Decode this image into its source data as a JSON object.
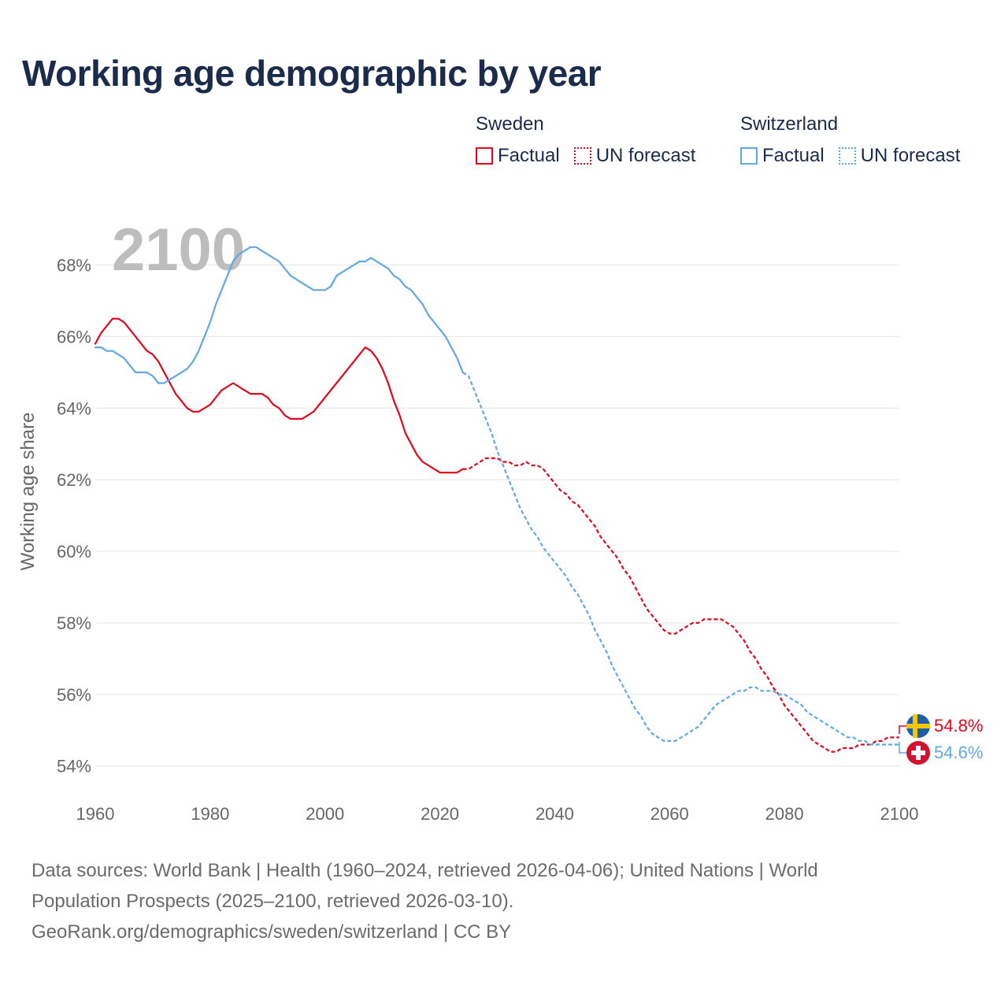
{
  "title": "Working age demographic by year",
  "legend": {
    "sweden": {
      "name": "Sweden",
      "factual": "Factual",
      "forecast": "UN forecast",
      "color": "#e3061c"
    },
    "switzerland": {
      "name": "Switzerland",
      "factual": "Factual",
      "forecast": "UN forecast",
      "color": "#62a8e5"
    }
  },
  "year_overlay": "2100",
  "end_labels": {
    "sweden": "54.8%",
    "switzerland": "54.6%"
  },
  "sources": {
    "line1": "Data sources: World Bank | Health (1960–2024, retrieved 2026-04-06); United Nations | World",
    "line2": "Population Prospects (2025–2100, retrieved 2026-03-10).",
    "line3": "GeoRank.org/demographics/sweden/switzerland | CC BY"
  },
  "chart_data": {
    "type": "line",
    "title": "Working age demographic by year",
    "xlabel": "",
    "ylabel": "Working age share",
    "xlim": [
      1960,
      2100
    ],
    "ylim": [
      53.4,
      69.2
    ],
    "x_ticks": [
      1960,
      1980,
      2000,
      2020,
      2040,
      2060,
      2080,
      2100
    ],
    "y_ticks": [
      54,
      56,
      58,
      60,
      62,
      64,
      66,
      68
    ],
    "x_tick_labels": [
      "1960",
      "1980",
      "2000",
      "2020",
      "2040",
      "2060",
      "2080",
      "2100"
    ],
    "y_tick_labels": [
      "54%",
      "56%",
      "58%",
      "60%",
      "62%",
      "64%",
      "66%",
      "68%"
    ],
    "grid": true,
    "factual_end_year": 2024,
    "series": [
      {
        "name": "Sweden",
        "color": "#e3061c",
        "points": [
          [
            1960,
            65.8
          ],
          [
            1961,
            66.1
          ],
          [
            1962,
            66.3
          ],
          [
            1963,
            66.5
          ],
          [
            1964,
            66.5
          ],
          [
            1965,
            66.4
          ],
          [
            1966,
            66.2
          ],
          [
            1967,
            66.0
          ],
          [
            1968,
            65.8
          ],
          [
            1969,
            65.6
          ],
          [
            1970,
            65.5
          ],
          [
            1971,
            65.3
          ],
          [
            1972,
            65.0
          ],
          [
            1973,
            64.7
          ],
          [
            1974,
            64.4
          ],
          [
            1975,
            64.2
          ],
          [
            1976,
            64.0
          ],
          [
            1977,
            63.9
          ],
          [
            1978,
            63.9
          ],
          [
            1979,
            64.0
          ],
          [
            1980,
            64.1
          ],
          [
            1981,
            64.3
          ],
          [
            1982,
            64.5
          ],
          [
            1983,
            64.6
          ],
          [
            1984,
            64.7
          ],
          [
            1985,
            64.6
          ],
          [
            1986,
            64.5
          ],
          [
            1987,
            64.4
          ],
          [
            1988,
            64.4
          ],
          [
            1989,
            64.4
          ],
          [
            1990,
            64.3
          ],
          [
            1991,
            64.1
          ],
          [
            1992,
            64.0
          ],
          [
            1993,
            63.8
          ],
          [
            1994,
            63.7
          ],
          [
            1995,
            63.7
          ],
          [
            1996,
            63.7
          ],
          [
            1997,
            63.8
          ],
          [
            1998,
            63.9
          ],
          [
            1999,
            64.1
          ],
          [
            2000,
            64.3
          ],
          [
            2001,
            64.5
          ],
          [
            2002,
            64.7
          ],
          [
            2003,
            64.9
          ],
          [
            2004,
            65.1
          ],
          [
            2005,
            65.3
          ],
          [
            2006,
            65.5
          ],
          [
            2007,
            65.7
          ],
          [
            2008,
            65.6
          ],
          [
            2009,
            65.4
          ],
          [
            2010,
            65.1
          ],
          [
            2011,
            64.7
          ],
          [
            2012,
            64.2
          ],
          [
            2013,
            63.8
          ],
          [
            2014,
            63.3
          ],
          [
            2015,
            63.0
          ],
          [
            2016,
            62.7
          ],
          [
            2017,
            62.5
          ],
          [
            2018,
            62.4
          ],
          [
            2019,
            62.3
          ],
          [
            2020,
            62.2
          ],
          [
            2021,
            62.2
          ],
          [
            2022,
            62.2
          ],
          [
            2023,
            62.2
          ],
          [
            2024,
            62.3
          ],
          [
            2025,
            62.3
          ],
          [
            2026,
            62.4
          ],
          [
            2027,
            62.5
          ],
          [
            2028,
            62.6
          ],
          [
            2029,
            62.6
          ],
          [
            2030,
            62.6
          ],
          [
            2031,
            62.5
          ],
          [
            2032,
            62.5
          ],
          [
            2033,
            62.4
          ],
          [
            2034,
            62.4
          ],
          [
            2035,
            62.5
          ],
          [
            2036,
            62.4
          ],
          [
            2037,
            62.4
          ],
          [
            2038,
            62.3
          ],
          [
            2039,
            62.1
          ],
          [
            2040,
            61.9
          ],
          [
            2041,
            61.7
          ],
          [
            2042,
            61.6
          ],
          [
            2043,
            61.4
          ],
          [
            2044,
            61.3
          ],
          [
            2045,
            61.1
          ],
          [
            2046,
            60.9
          ],
          [
            2047,
            60.7
          ],
          [
            2048,
            60.4
          ],
          [
            2049,
            60.2
          ],
          [
            2050,
            60.0
          ],
          [
            2051,
            59.8
          ],
          [
            2052,
            59.5
          ],
          [
            2053,
            59.3
          ],
          [
            2054,
            59.0
          ],
          [
            2055,
            58.7
          ],
          [
            2056,
            58.4
          ],
          [
            2057,
            58.2
          ],
          [
            2058,
            58.0
          ],
          [
            2059,
            57.8
          ],
          [
            2060,
            57.7
          ],
          [
            2061,
            57.7
          ],
          [
            2062,
            57.8
          ],
          [
            2063,
            57.9
          ],
          [
            2064,
            58.0
          ],
          [
            2065,
            58.0
          ],
          [
            2066,
            58.1
          ],
          [
            2067,
            58.1
          ],
          [
            2068,
            58.1
          ],
          [
            2069,
            58.1
          ],
          [
            2070,
            58.0
          ],
          [
            2071,
            57.9
          ],
          [
            2072,
            57.7
          ],
          [
            2073,
            57.5
          ],
          [
            2074,
            57.2
          ],
          [
            2075,
            57.0
          ],
          [
            2076,
            56.7
          ],
          [
            2077,
            56.5
          ],
          [
            2078,
            56.2
          ],
          [
            2079,
            56.0
          ],
          [
            2080,
            55.7
          ],
          [
            2081,
            55.5
          ],
          [
            2082,
            55.3
          ],
          [
            2083,
            55.1
          ],
          [
            2084,
            54.9
          ],
          [
            2085,
            54.7
          ],
          [
            2086,
            54.6
          ],
          [
            2087,
            54.5
          ],
          [
            2088,
            54.4
          ],
          [
            2089,
            54.4
          ],
          [
            2090,
            54.5
          ],
          [
            2091,
            54.5
          ],
          [
            2092,
            54.5
          ],
          [
            2093,
            54.6
          ],
          [
            2094,
            54.6
          ],
          [
            2095,
            54.6
          ],
          [
            2096,
            54.7
          ],
          [
            2097,
            54.7
          ],
          [
            2098,
            54.8
          ],
          [
            2099,
            54.8
          ],
          [
            2100,
            54.8
          ]
        ]
      },
      {
        "name": "Switzerland",
        "color": "#62a8e5",
        "points": [
          [
            1960,
            65.7
          ],
          [
            1961,
            65.7
          ],
          [
            1962,
            65.6
          ],
          [
            1963,
            65.6
          ],
          [
            1964,
            65.5
          ],
          [
            1965,
            65.4
          ],
          [
            1966,
            65.2
          ],
          [
            1967,
            65.0
          ],
          [
            1968,
            65.0
          ],
          [
            1969,
            65.0
          ],
          [
            1970,
            64.9
          ],
          [
            1971,
            64.7
          ],
          [
            1972,
            64.7
          ],
          [
            1973,
            64.8
          ],
          [
            1974,
            64.9
          ],
          [
            1975,
            65.0
          ],
          [
            1976,
            65.1
          ],
          [
            1977,
            65.3
          ],
          [
            1978,
            65.6
          ],
          [
            1979,
            66.0
          ],
          [
            1980,
            66.4
          ],
          [
            1981,
            66.9
          ],
          [
            1982,
            67.3
          ],
          [
            1983,
            67.7
          ],
          [
            1984,
            68.1
          ],
          [
            1985,
            68.3
          ],
          [
            1986,
            68.4
          ],
          [
            1987,
            68.5
          ],
          [
            1988,
            68.5
          ],
          [
            1989,
            68.4
          ],
          [
            1990,
            68.3
          ],
          [
            1991,
            68.2
          ],
          [
            1992,
            68.1
          ],
          [
            1993,
            67.9
          ],
          [
            1994,
            67.7
          ],
          [
            1995,
            67.6
          ],
          [
            1996,
            67.5
          ],
          [
            1997,
            67.4
          ],
          [
            1998,
            67.3
          ],
          [
            1999,
            67.3
          ],
          [
            2000,
            67.3
          ],
          [
            2001,
            67.4
          ],
          [
            2002,
            67.7
          ],
          [
            2003,
            67.8
          ],
          [
            2004,
            67.9
          ],
          [
            2005,
            68.0
          ],
          [
            2006,
            68.1
          ],
          [
            2007,
            68.1
          ],
          [
            2008,
            68.2
          ],
          [
            2009,
            68.1
          ],
          [
            2010,
            68.0
          ],
          [
            2011,
            67.9
          ],
          [
            2012,
            67.7
          ],
          [
            2013,
            67.6
          ],
          [
            2014,
            67.4
          ],
          [
            2015,
            67.3
          ],
          [
            2016,
            67.1
          ],
          [
            2017,
            66.9
          ],
          [
            2018,
            66.6
          ],
          [
            2019,
            66.4
          ],
          [
            2020,
            66.2
          ],
          [
            2021,
            66.0
          ],
          [
            2022,
            65.7
          ],
          [
            2023,
            65.4
          ],
          [
            2024,
            65.0
          ],
          [
            2025,
            64.9
          ],
          [
            2026,
            64.5
          ],
          [
            2027,
            64.1
          ],
          [
            2028,
            63.7
          ],
          [
            2029,
            63.3
          ],
          [
            2030,
            62.8
          ],
          [
            2031,
            62.4
          ],
          [
            2032,
            62.0
          ],
          [
            2033,
            61.6
          ],
          [
            2034,
            61.2
          ],
          [
            2035,
            60.9
          ],
          [
            2036,
            60.6
          ],
          [
            2037,
            60.4
          ],
          [
            2038,
            60.1
          ],
          [
            2039,
            59.9
          ],
          [
            2040,
            59.7
          ],
          [
            2041,
            59.5
          ],
          [
            2042,
            59.3
          ],
          [
            2043,
            59.0
          ],
          [
            2044,
            58.8
          ],
          [
            2045,
            58.5
          ],
          [
            2046,
            58.2
          ],
          [
            2047,
            57.8
          ],
          [
            2048,
            57.5
          ],
          [
            2049,
            57.2
          ],
          [
            2050,
            56.8
          ],
          [
            2051,
            56.5
          ],
          [
            2052,
            56.2
          ],
          [
            2053,
            55.9
          ],
          [
            2054,
            55.6
          ],
          [
            2055,
            55.4
          ],
          [
            2056,
            55.1
          ],
          [
            2057,
            54.9
          ],
          [
            2058,
            54.8
          ],
          [
            2059,
            54.7
          ],
          [
            2060,
            54.7
          ],
          [
            2061,
            54.7
          ],
          [
            2062,
            54.8
          ],
          [
            2063,
            54.9
          ],
          [
            2064,
            55.0
          ],
          [
            2065,
            55.1
          ],
          [
            2066,
            55.3
          ],
          [
            2067,
            55.5
          ],
          [
            2068,
            55.7
          ],
          [
            2069,
            55.8
          ],
          [
            2070,
            55.9
          ],
          [
            2071,
            56.0
          ],
          [
            2072,
            56.1
          ],
          [
            2073,
            56.1
          ],
          [
            2074,
            56.2
          ],
          [
            2075,
            56.2
          ],
          [
            2076,
            56.1
          ],
          [
            2077,
            56.1
          ],
          [
            2078,
            56.1
          ],
          [
            2079,
            56.0
          ],
          [
            2080,
            56.0
          ],
          [
            2081,
            55.9
          ],
          [
            2082,
            55.8
          ],
          [
            2083,
            55.7
          ],
          [
            2084,
            55.5
          ],
          [
            2085,
            55.4
          ],
          [
            2086,
            55.3
          ],
          [
            2087,
            55.2
          ],
          [
            2088,
            55.1
          ],
          [
            2089,
            55.0
          ],
          [
            2090,
            54.9
          ],
          [
            2091,
            54.8
          ],
          [
            2092,
            54.8
          ],
          [
            2093,
            54.7
          ],
          [
            2094,
            54.7
          ],
          [
            2095,
            54.6
          ],
          [
            2096,
            54.6
          ],
          [
            2097,
            54.6
          ],
          [
            2098,
            54.6
          ],
          [
            2099,
            54.6
          ],
          [
            2100,
            54.6
          ]
        ]
      }
    ]
  }
}
